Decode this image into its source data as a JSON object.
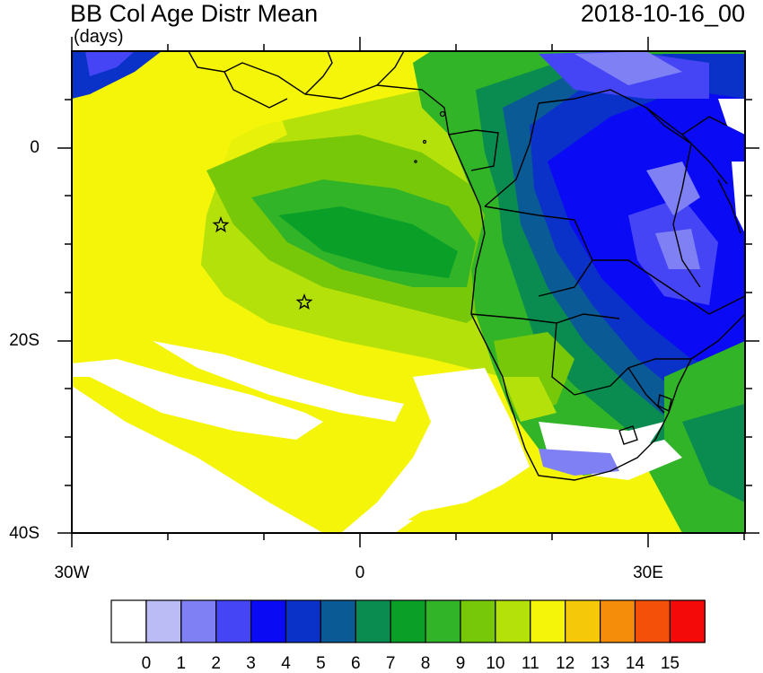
{
  "header": {
    "title": "BB Col Age Distr Mean",
    "units": "(days)",
    "date": "2018-10-16_00"
  },
  "axes": {
    "lat_labels": [
      "0",
      "20S",
      "40S"
    ],
    "lon_labels": [
      "30W",
      "0",
      "30E"
    ]
  },
  "markers": {
    "count": 2,
    "icon": "star-icon"
  },
  "colorbar": {
    "labels": [
      "0",
      "1",
      "2",
      "3",
      "4",
      "5",
      "6",
      "7",
      "8",
      "9",
      "10",
      "11",
      "12",
      "13",
      "14",
      "15"
    ],
    "colors": [
      "#ffffff",
      "#bbbbf5",
      "#8080f5",
      "#4545f5",
      "#0a0af5",
      "#0a32c8",
      "#0a5a96",
      "#0a8c50",
      "#0aa028",
      "#32b428",
      "#78c80a",
      "#b4e10a",
      "#f5f50a",
      "#f5c80a",
      "#f58c0a",
      "#f5500a",
      "#f50a0a"
    ]
  },
  "field_colors": {
    "land_blue": "#0a0af5",
    "ocean_yellow": "#f5f50a",
    "missing": "#ffffff"
  }
}
